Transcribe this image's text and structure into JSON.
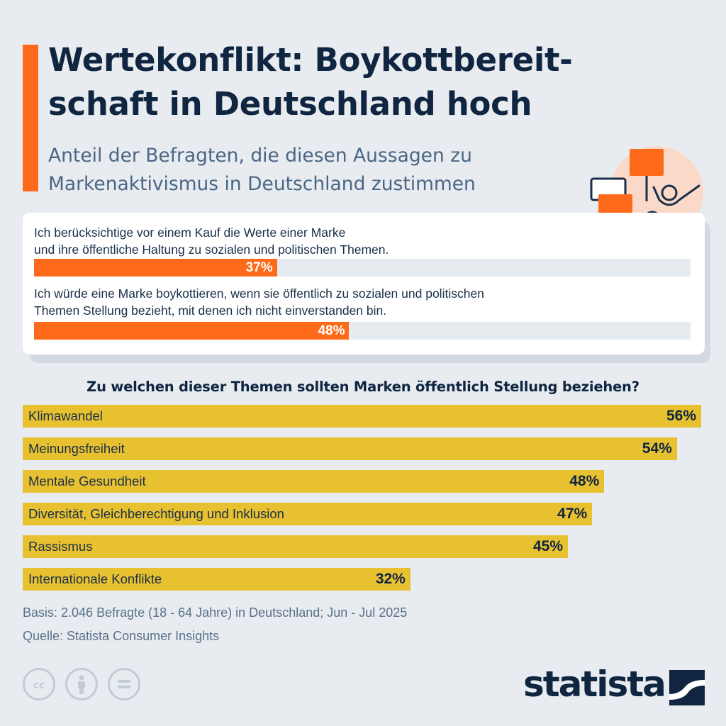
{
  "header": {
    "title_line1": "Wertekonflikt: Boykottbereit-",
    "title_line2": "schaft in Deutschland hoch",
    "subtitle_line1": "Anteil der Befragten, die diesen Aussagen zu",
    "subtitle_line2": "Markenaktivismus in Deutschland zustimmen"
  },
  "statements": [
    {
      "line1": "Ich berücksichtige vor einem Kauf die Werte einer Marke",
      "line2": "und ihre öffentliche Haltung zu sozialen und politischen Themen.",
      "label": "37%"
    },
    {
      "line1": "Ich würde eine Marke boykottieren, wenn sie öffentlich zu sozialen und politischen",
      "line2": "Themen Stellung bezieht, mit denen ich nicht einverstanden bin.",
      "label": "48%"
    }
  ],
  "question": "Zu welchen dieser Themen sollten Marken öffentlich Stellung beziehen?",
  "topic_labels": [
    "56%",
    "54%",
    "48%",
    "47%",
    "45%",
    "32%"
  ],
  "chart_data": [
    {
      "type": "bar",
      "orientation": "horizontal",
      "title": "",
      "categories": [
        "Ich berücksichtige vor einem Kauf die Werte einer Marke und ihre öffentliche Haltung zu sozialen und politischen Themen.",
        "Ich würde eine Marke boykottieren, wenn sie öffentlich zu sozialen und politischen Themen Stellung bezieht, mit denen ich nicht einverstanden bin."
      ],
      "values": [
        37,
        48
      ],
      "unit": "%",
      "xlim": [
        0,
        100
      ],
      "color": "#ff6a1a",
      "track_color": "#e6ebf0"
    },
    {
      "type": "bar",
      "orientation": "horizontal",
      "title": "Zu welchen dieser Themen sollten Marken öffentlich Stellung beziehen?",
      "categories": [
        "Klimawandel",
        "Meinungsfreiheit",
        "Mentale Gesundheit",
        "Diversität, Gleichberechtigung und Inklusion",
        "Rassismus",
        "Internationale Konflikte"
      ],
      "values": [
        56,
        54,
        48,
        47,
        45,
        32
      ],
      "unit": "%",
      "color": "#e8c130"
    }
  ],
  "footer": {
    "basis": "Basis: 2.046 Befragte (18 - 64 Jahre) in Deutschland; Jun - Jul 2025",
    "source": "Quelle: Statista Consumer Insights",
    "logo_text": "statista",
    "license_icons": [
      "cc-icon",
      "attribution-icon",
      "no-derivatives-icon"
    ]
  },
  "colors": {
    "accent": "#ff6a1a",
    "topic_bar": "#e8c130",
    "title": "#0f2540",
    "subtitle": "#4a6684",
    "background": "#e8ecf1"
  }
}
